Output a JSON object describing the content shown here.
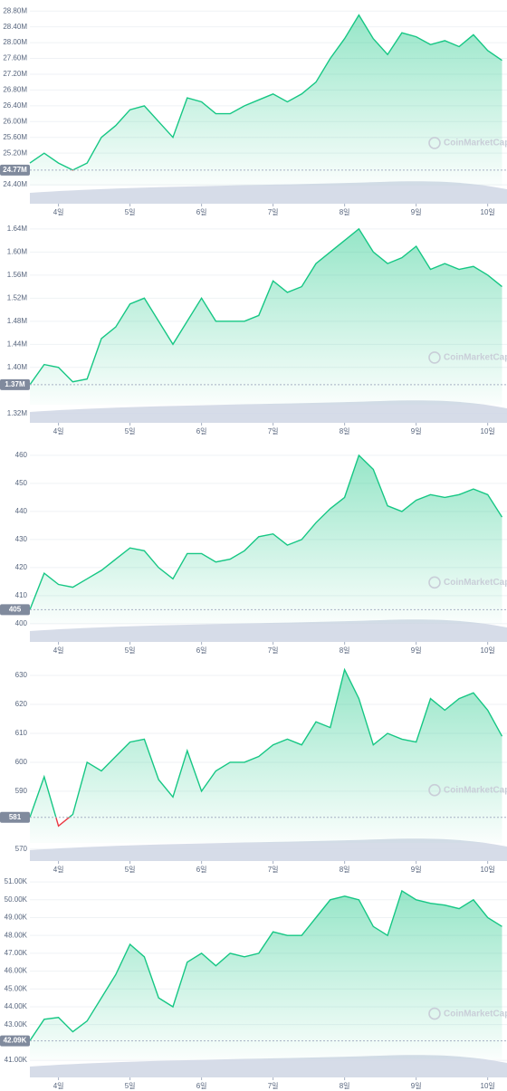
{
  "watermark": "CoinMarketCap",
  "chart_data": [
    {
      "type": "line",
      "x": [
        3.6,
        3.8,
        4.0,
        4.2,
        4.4,
        4.6,
        4.8,
        5.0,
        5.2,
        5.4,
        5.6,
        5.8,
        6.0,
        6.2,
        6.4,
        6.6,
        6.8,
        7.0,
        7.2,
        7.4,
        7.6,
        7.8,
        8.0,
        8.2,
        8.4,
        8.6,
        8.8,
        9.0,
        9.2,
        9.4,
        9.6,
        9.8,
        10.0,
        10.2
      ],
      "series": [
        {
          "color": "#16c784",
          "values": [
            24.95,
            25.2,
            24.95,
            24.77,
            24.95,
            25.6,
            25.9,
            26.3,
            26.4,
            26.0,
            25.6,
            26.6,
            26.5,
            26.2,
            26.2,
            26.4,
            26.55,
            26.7,
            26.5,
            26.7,
            27.0,
            27.6,
            28.1,
            28.7,
            28.1,
            27.7,
            28.25,
            28.15,
            27.95,
            28.05,
            27.9,
            28.2,
            27.8,
            27.55
          ]
        }
      ],
      "xlim": [
        3.6,
        10.27
      ],
      "xticks": [
        {
          "value": 4,
          "label": "4일"
        },
        {
          "value": 5,
          "label": "5일"
        },
        {
          "value": 6,
          "label": "6일"
        },
        {
          "value": 7,
          "label": "7일"
        },
        {
          "value": 8,
          "label": "8일"
        },
        {
          "value": 9,
          "label": "9일"
        },
        {
          "value": 10,
          "label": "10일"
        }
      ],
      "ylim": [
        23.92,
        29.08
      ],
      "yticks": [
        {
          "value": 24.4,
          "label": "24.40M"
        },
        {
          "value": 25.2,
          "label": "25.20M"
        },
        {
          "value": 25.6,
          "label": "25.60M"
        },
        {
          "value": 26.0,
          "label": "26.00M"
        },
        {
          "value": 26.4,
          "label": "26.40M"
        },
        {
          "value": 26.8,
          "label": "26.80M"
        },
        {
          "value": 27.2,
          "label": "27.20M"
        },
        {
          "value": 27.6,
          "label": "27.60M"
        },
        {
          "value": 28.0,
          "label": "28.00M"
        },
        {
          "value": 28.4,
          "label": "28.40M"
        },
        {
          "value": 28.8,
          "label": "28.80M"
        }
      ],
      "baseline": {
        "value": 24.77,
        "label": "24.77M"
      },
      "down_color": "#ea3943",
      "grid": true
    },
    {
      "type": "line",
      "x": [
        3.6,
        3.8,
        4.0,
        4.2,
        4.4,
        4.6,
        4.8,
        5.0,
        5.2,
        5.4,
        5.6,
        5.8,
        6.0,
        6.2,
        6.4,
        6.6,
        6.8,
        7.0,
        7.2,
        7.4,
        7.6,
        7.8,
        8.0,
        8.2,
        8.4,
        8.6,
        8.8,
        9.0,
        9.2,
        9.4,
        9.6,
        9.8,
        10.0,
        10.2
      ],
      "series": [
        {
          "color": "#16c784",
          "values": [
            1.37,
            1.405,
            1.4,
            1.375,
            1.38,
            1.45,
            1.47,
            1.51,
            1.52,
            1.48,
            1.44,
            1.48,
            1.52,
            1.48,
            1.48,
            1.48,
            1.49,
            1.55,
            1.53,
            1.54,
            1.58,
            1.6,
            1.62,
            1.64,
            1.6,
            1.58,
            1.59,
            1.61,
            1.57,
            1.58,
            1.57,
            1.575,
            1.56,
            1.54
          ]
        }
      ],
      "xlim": [
        3.6,
        10.27
      ],
      "xticks": [
        {
          "value": 4,
          "label": "4일"
        },
        {
          "value": 5,
          "label": "5일"
        },
        {
          "value": 6,
          "label": "6일"
        },
        {
          "value": 7,
          "label": "7일"
        },
        {
          "value": 8,
          "label": "8일"
        },
        {
          "value": 9,
          "label": "9일"
        },
        {
          "value": 10,
          "label": "10일"
        }
      ],
      "ylim": [
        1.304,
        1.657
      ],
      "yticks": [
        {
          "value": 1.32,
          "label": "1.32M"
        },
        {
          "value": 1.4,
          "label": "1.40M"
        },
        {
          "value": 1.44,
          "label": "1.44M"
        },
        {
          "value": 1.48,
          "label": "1.48M"
        },
        {
          "value": 1.52,
          "label": "1.52M"
        },
        {
          "value": 1.56,
          "label": "1.56M"
        },
        {
          "value": 1.6,
          "label": "1.60M"
        },
        {
          "value": 1.64,
          "label": "1.64M"
        }
      ],
      "baseline": {
        "value": 1.37,
        "label": "1.37M"
      },
      "down_color": "#ea3943",
      "grid": true
    },
    {
      "type": "line",
      "x": [
        3.6,
        3.8,
        4.0,
        4.2,
        4.4,
        4.6,
        4.8,
        5.0,
        5.2,
        5.4,
        5.6,
        5.8,
        6.0,
        6.2,
        6.4,
        6.6,
        6.8,
        7.0,
        7.2,
        7.4,
        7.6,
        7.8,
        8.0,
        8.2,
        8.4,
        8.6,
        8.8,
        9.0,
        9.2,
        9.4,
        9.6,
        9.8,
        10.0,
        10.2
      ],
      "series": [
        {
          "color": "#16c784",
          "values": [
            405,
            418,
            414,
            413,
            416,
            419,
            423,
            427,
            426,
            420,
            416,
            425,
            425,
            422,
            423,
            426,
            431,
            432,
            428,
            430,
            436,
            441,
            445,
            460,
            455,
            442,
            440,
            444,
            446,
            445,
            446,
            448,
            446,
            438
          ]
        }
      ],
      "xlim": [
        3.6,
        10.27
      ],
      "xticks": [
        {
          "value": 4,
          "label": "4일"
        },
        {
          "value": 5,
          "label": "5일"
        },
        {
          "value": 6,
          "label": "6일"
        },
        {
          "value": 7,
          "label": "7일"
        },
        {
          "value": 8,
          "label": "8일"
        },
        {
          "value": 9,
          "label": "9일"
        },
        {
          "value": 10,
          "label": "10일"
        }
      ],
      "ylim": [
        393.5,
        466.1
      ],
      "yticks": [
        400,
        410,
        420,
        430,
        440,
        450,
        460
      ],
      "baseline": {
        "value": 405,
        "label": "405"
      },
      "down_color": "#ea3943",
      "grid": true
    },
    {
      "type": "line",
      "x": [
        3.6,
        3.8,
        4.0,
        4.2,
        4.4,
        4.6,
        4.8,
        5.0,
        5.2,
        5.4,
        5.6,
        5.8,
        6.0,
        6.2,
        6.4,
        6.6,
        6.8,
        7.0,
        7.2,
        7.4,
        7.6,
        7.8,
        8.0,
        8.2,
        8.4,
        8.6,
        8.8,
        9.0,
        9.2,
        9.4,
        9.6,
        9.8,
        10.0,
        10.2
      ],
      "series": [
        {
          "color": "#16c784",
          "values": [
            581,
            595,
            578,
            582,
            600,
            597,
            602,
            607,
            608,
            594,
            588,
            604,
            590,
            597,
            600,
            600,
            602,
            606,
            608,
            606,
            614,
            612,
            632,
            622,
            606,
            610,
            608,
            607,
            622,
            618,
            622,
            624,
            618,
            609
          ]
        }
      ],
      "xlim": [
        3.6,
        10.27
      ],
      "xticks": [
        {
          "value": 4,
          "label": "4일"
        },
        {
          "value": 5,
          "label": "5일"
        },
        {
          "value": 6,
          "label": "6일"
        },
        {
          "value": 7,
          "label": "7일"
        },
        {
          "value": 8,
          "label": "8일"
        },
        {
          "value": 9,
          "label": "9일"
        },
        {
          "value": 10,
          "label": "10일"
        }
      ],
      "ylim": [
        565.9,
        636.25
      ],
      "yticks": [
        570,
        590,
        600,
        610,
        620,
        630
      ],
      "baseline": {
        "value": 581,
        "label": "581"
      },
      "down_color": "#ea3943",
      "grid": true
    },
    {
      "type": "line",
      "x": [
        3.6,
        3.8,
        4.0,
        4.2,
        4.4,
        4.6,
        4.8,
        5.0,
        5.2,
        5.4,
        5.6,
        5.8,
        6.0,
        6.2,
        6.4,
        6.6,
        6.8,
        7.0,
        7.2,
        7.4,
        7.6,
        7.8,
        8.0,
        8.2,
        8.4,
        8.6,
        8.8,
        9.0,
        9.2,
        9.4,
        9.6,
        9.8,
        10.0,
        10.2
      ],
      "series": [
        {
          "color": "#16c784",
          "values": [
            42.1,
            43.3,
            43.4,
            42.6,
            43.2,
            44.5,
            45.8,
            47.5,
            46.8,
            44.5,
            44.0,
            46.5,
            47.0,
            46.3,
            47.0,
            46.8,
            47.0,
            48.2,
            48.0,
            48.0,
            49.0,
            50.0,
            50.2,
            50.0,
            48.5,
            48.0,
            50.5,
            50.0,
            49.8,
            49.7,
            49.5,
            50.0,
            49.0,
            48.5
          ]
        }
      ],
      "xlim": [
        3.6,
        10.27
      ],
      "xticks": [
        {
          "value": 4,
          "label": "4일"
        },
        {
          "value": 5,
          "label": "5일"
        },
        {
          "value": 6,
          "label": "6일"
        },
        {
          "value": 7,
          "label": "7일"
        },
        {
          "value": 8,
          "label": "8일"
        },
        {
          "value": 9,
          "label": "9일"
        },
        {
          "value": 10,
          "label": "10일"
        }
      ],
      "ylim": [
        40.04,
        51.46
      ],
      "yticks": [
        {
          "value": 41,
          "label": "41.00K"
        },
        {
          "value": 43,
          "label": "43.00K"
        },
        {
          "value": 44,
          "label": "44.00K"
        },
        {
          "value": 45,
          "label": "45.00K"
        },
        {
          "value": 46,
          "label": "46.00K"
        },
        {
          "value": 47,
          "label": "47.00K"
        },
        {
          "value": 48,
          "label": "48.00K"
        },
        {
          "value": 49,
          "label": "49.00K"
        },
        {
          "value": 50,
          "label": "50.00K"
        },
        {
          "value": 51,
          "label": "51.00K"
        }
      ],
      "baseline": {
        "value": 42.09,
        "label": "42.09K"
      },
      "down_color": "#ea3943",
      "grid": true
    }
  ]
}
